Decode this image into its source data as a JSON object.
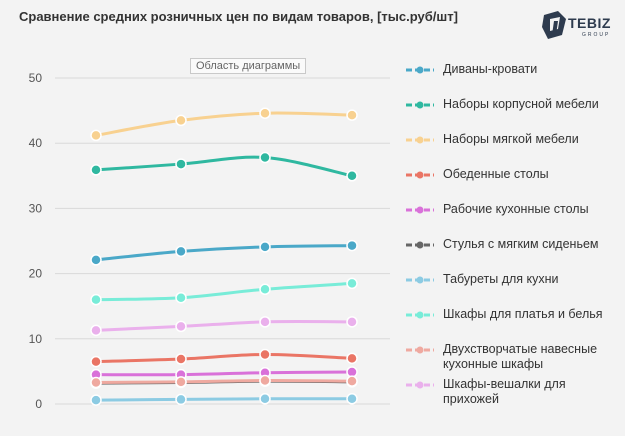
{
  "header": {
    "title": "Сравнение средних розничных цен по видам товаров, [тыс.руб/шт]",
    "logo_text": "TEBIZ",
    "logo_sub": "GROUP",
    "tooltip": "Область диаграммы"
  },
  "chart_data": {
    "type": "line",
    "title": "Сравнение средних розничных цен по видам товаров, [тыс.руб/шт]",
    "ylim": [
      0,
      50
    ],
    "y_ticks": [
      0,
      10,
      20,
      30,
      40,
      50
    ],
    "grid": true,
    "legend_position": "right",
    "x_points": 4,
    "series": [
      {
        "name": "Диваны-кровати",
        "color": "#4aa8c8",
        "values": [
          22.1,
          23.4,
          24.1,
          24.3
        ]
      },
      {
        "name": "Наборы корпусной мебели",
        "color": "#2fb8a0",
        "values": [
          35.9,
          36.8,
          37.8,
          35.0
        ]
      },
      {
        "name": "Наборы мягкой мебели",
        "color": "#f8d190",
        "values": [
          41.2,
          43.5,
          44.6,
          44.3
        ]
      },
      {
        "name": "Обеденные столы",
        "color": "#ea7565",
        "values": [
          6.5,
          6.9,
          7.6,
          7.0
        ]
      },
      {
        "name": "Рабочие кухонные столы",
        "color": "#d971d9",
        "values": [
          4.5,
          4.5,
          4.8,
          4.9
        ]
      },
      {
        "name": "Стулья с мягким сиденьем",
        "color": "#666666",
        "values": [
          3.2,
          3.3,
          3.5,
          3.4
        ]
      },
      {
        "name": "Табуреты для кухни",
        "color": "#8ccbe3",
        "values": [
          0.6,
          0.7,
          0.8,
          0.8
        ]
      },
      {
        "name": "Шкафы для платья и белья",
        "color": "#78ecd8",
        "values": [
          16.0,
          16.3,
          17.6,
          18.5
        ]
      },
      {
        "name": "Двухстворчатые навесные кухонные шкафы",
        "color": "#efa9a0",
        "values": [
          3.3,
          3.4,
          3.6,
          3.5
        ]
      },
      {
        "name": "Шкафы-вешалки для прихожей",
        "color": "#eab0ec",
        "values": [
          11.3,
          11.9,
          12.6,
          12.6
        ]
      }
    ]
  }
}
